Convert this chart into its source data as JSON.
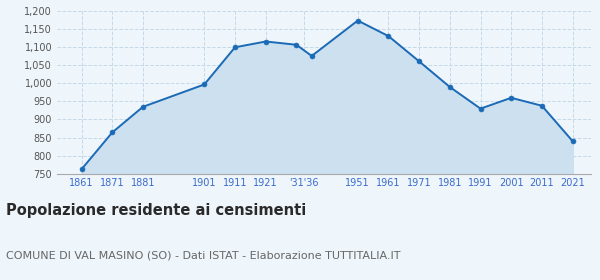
{
  "years": [
    1861,
    1871,
    1881,
    1901,
    1911,
    1921,
    1931,
    1936,
    1951,
    1961,
    1971,
    1981,
    1991,
    2001,
    2011,
    2021
  ],
  "population": [
    762,
    864,
    935,
    997,
    1100,
    1116,
    1107,
    1076,
    1174,
    1131,
    1061,
    990,
    930,
    960,
    938,
    840
  ],
  "line_color": "#1b6ab5",
  "fill_color": "#cce0f0",
  "marker_color": "#1b6ab5",
  "grid_color": "#c5d9e8",
  "bg_color": "#eef5fb",
  "ylim": [
    750,
    1200
  ],
  "xlim_min": 1853,
  "xlim_max": 2027,
  "ytick_values": [
    750,
    800,
    850,
    900,
    950,
    1000,
    1050,
    1100,
    1150,
    1200
  ],
  "ytick_labels": [
    "750",
    "800",
    "850",
    "900",
    "950",
    "1,000",
    "1,050",
    "1,100",
    "1,150",
    "1,200"
  ],
  "x_tick_positions": [
    1861,
    1871,
    1881,
    1901,
    1911,
    1921,
    1933.5,
    1951,
    1961,
    1971,
    1981,
    1991,
    2001,
    2011,
    2021
  ],
  "x_tick_labels": [
    "1861",
    "1871",
    "1881",
    "1901",
    "1911",
    "1921",
    "‱36",
    "1951",
    "1961",
    "1971",
    "1981",
    "1991",
    "2001",
    "2011",
    "2021"
  ],
  "title": "Popolazione residente ai censimenti",
  "subtitle": "COMUNE DI VAL MASINO (SO) - Dati ISTAT - Elaborazione TUTTITALIA.IT",
  "title_fontsize": 10.5,
  "subtitle_fontsize": 8,
  "tick_label_color": "#3a6bcc",
  "ytick_label_color": "#555555"
}
